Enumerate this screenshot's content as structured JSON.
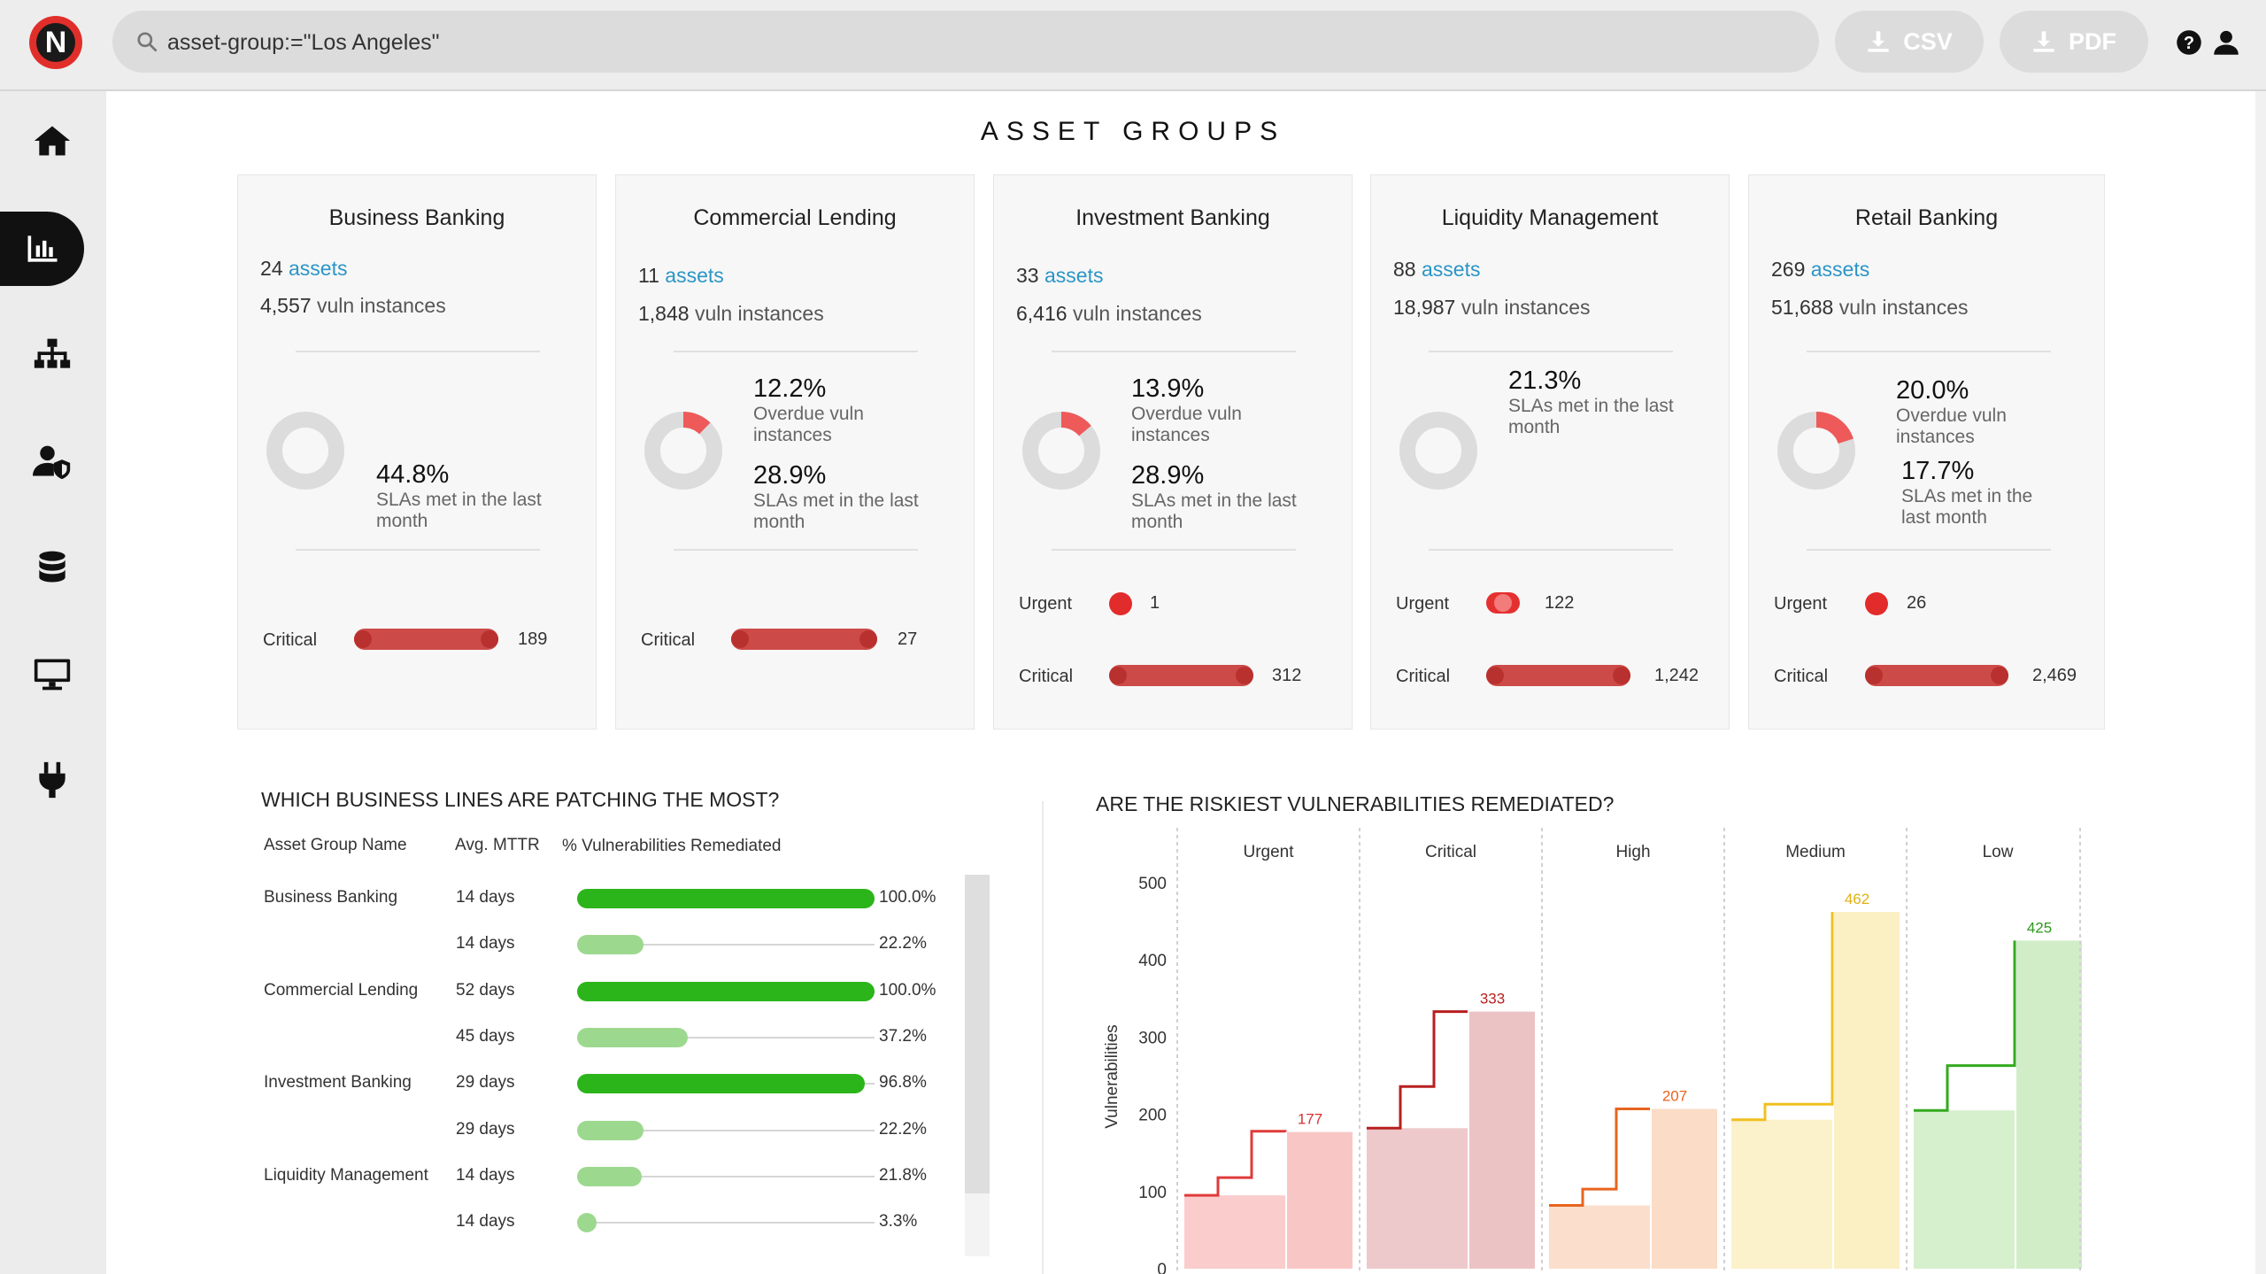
{
  "search": {
    "query": "asset-group:=\"Los Angeles\""
  },
  "toolbar": {
    "csv_label": "CSV",
    "pdf_label": "PDF"
  },
  "page": {
    "title": "ASSET GROUPS"
  },
  "nav": [
    "home",
    "reports",
    "hierarchy",
    "users-security",
    "database",
    "monitor",
    "integrations"
  ],
  "cards": [
    {
      "name": "Business Banking",
      "assets": "24",
      "assets_word": "assets",
      "vulns": "4,557",
      "vulns_word": "vuln instances",
      "overdue_pct": null,
      "overdue_label": null,
      "sla_pct": "44.8%",
      "sla_label": "SLAs met in the last month",
      "urgent": null,
      "critical": "189"
    },
    {
      "name": "Commercial Lending",
      "assets": "11",
      "assets_word": "assets",
      "vulns": "1,848",
      "vulns_word": "vuln instances",
      "overdue_pct": "12.2%",
      "overdue_label": "Overdue vuln instances",
      "sla_pct": "28.9%",
      "sla_label": "SLAs met in the last month",
      "urgent": null,
      "critical": "27"
    },
    {
      "name": "Investment Banking",
      "assets": "33",
      "assets_word": "assets",
      "vulns": "6,416",
      "vulns_word": "vuln instances",
      "overdue_pct": "13.9%",
      "overdue_label": "Overdue vuln instances",
      "sla_pct": "28.9%",
      "sla_label": "SLAs met in the last month",
      "urgent": "1",
      "critical": "312"
    },
    {
      "name": "Liquidity Management",
      "assets": "88",
      "assets_word": "assets",
      "vulns": "18,987",
      "vulns_word": "vuln instances",
      "overdue_pct": null,
      "overdue_label": null,
      "sla_pct": "21.3%",
      "sla_label": "SLAs met in the last month",
      "urgent": "122",
      "critical": "1,242"
    },
    {
      "name": "Retail Banking",
      "assets": "269",
      "assets_word": "assets",
      "vulns": "51,688",
      "vulns_word": "vuln instances",
      "overdue_pct": "20.0%",
      "overdue_label": "Overdue vuln instances",
      "sla_pct": "17.7%",
      "sla_label": "SLAs met in the last month",
      "urgent": "26",
      "critical": "2,469"
    }
  ],
  "severity_labels": {
    "urgent": "Urgent",
    "critical": "Critical"
  },
  "patching": {
    "title": "WHICH BUSINESS LINES ARE PATCHING THE MOST?",
    "columns": [
      "Asset Group Name",
      "Avg. MTTR",
      "% Vulnerabilities Remediated"
    ],
    "rows": [
      {
        "group": "Business Banking",
        "mttr": "14 days",
        "pct": "100.0%",
        "value": 100.0,
        "strong": true
      },
      {
        "group": "",
        "mttr": "14 days",
        "pct": "22.2%",
        "value": 22.2,
        "strong": false
      },
      {
        "group": "Commercial Lending",
        "mttr": "52 days",
        "pct": "100.0%",
        "value": 100.0,
        "strong": true
      },
      {
        "group": "",
        "mttr": "45 days",
        "pct": "37.2%",
        "value": 37.2,
        "strong": false
      },
      {
        "group": "Investment Banking",
        "mttr": "29 days",
        "pct": "96.8%",
        "value": 96.8,
        "strong": true
      },
      {
        "group": "",
        "mttr": "29 days",
        "pct": "22.2%",
        "value": 22.2,
        "strong": false
      },
      {
        "group": "Liquidity Management",
        "mttr": "14 days",
        "pct": "21.8%",
        "value": 21.8,
        "strong": false
      },
      {
        "group": "",
        "mttr": "14 days",
        "pct": "3.3%",
        "value": 3.3,
        "strong": false
      }
    ]
  },
  "chart_data": {
    "type": "area",
    "title": "ARE THE RISKIEST VULNERABILITIES REMEDIATED?",
    "ylabel": "Vulnerabilities",
    "ylim": [
      0,
      500
    ],
    "yticks": [
      0,
      100,
      200,
      300,
      400,
      500
    ],
    "panels": [
      {
        "name": "Urgent",
        "color": "#e03a3a",
        "fill": "#f9c6c6",
        "label_color": "#d93030",
        "steps": [
          95,
          95,
          118,
          178,
          177
        ],
        "final": 177
      },
      {
        "name": "Critical",
        "color": "#b81f1f",
        "fill": "#ecc3c5",
        "label_color": "#b81f1f",
        "steps": [
          182,
          182,
          236,
          333,
          333
        ],
        "final": 333
      },
      {
        "name": "High",
        "color": "#e8641f",
        "fill": "#fbdcc6",
        "label_color": "#e8641f",
        "steps": [
          82,
          82,
          103,
          207,
          207
        ],
        "final": 207
      },
      {
        "name": "Medium",
        "color": "#f0c020",
        "fill": "#fbefc4",
        "label_color": "#e0b010",
        "steps": [
          193,
          193,
          213,
          213,
          462
        ],
        "final": 462
      },
      {
        "name": "Low",
        "color": "#33aa1f",
        "fill": "#d1edc8",
        "label_color": "#2e9a1c",
        "steps": [
          205,
          205,
          263,
          263,
          425
        ],
        "final": 425
      }
    ]
  }
}
